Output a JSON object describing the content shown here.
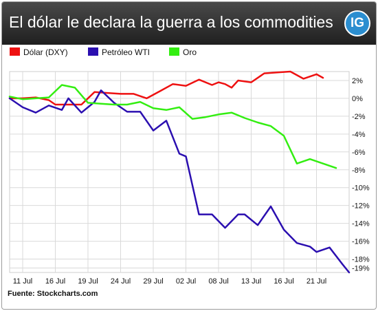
{
  "header": {
    "title": "El dólar le declara la guerra a los commodities",
    "logo_text": "IG",
    "background": "#2d2d2d",
    "logo_color": "#2b8ed0"
  },
  "source": "Fuente: Stockcharts.com",
  "chart_data": {
    "type": "line",
    "title": "El dólar le declara la guerra a los commodities",
    "ylim": [
      -19.5,
      3
    ],
    "y_ticks": [
      {
        "value": 2,
        "label": "2%"
      },
      {
        "value": 0,
        "label": "0%"
      },
      {
        "value": -2,
        "label": "-2%"
      },
      {
        "value": -4,
        "label": "-4%"
      },
      {
        "value": -6,
        "label": "-6%"
      },
      {
        "value": -8,
        "label": "-8%"
      },
      {
        "value": -10,
        "label": "-10%"
      },
      {
        "value": -12,
        "label": "-12%"
      },
      {
        "value": -14,
        "label": "-14%"
      },
      {
        "value": -16,
        "label": "-16%"
      },
      {
        "value": -18,
        "label": "-18%"
      },
      {
        "value": -19,
        "label": "-19%"
      }
    ],
    "x_ticks": [
      {
        "index": 2,
        "label": "11 Jul"
      },
      {
        "index": 7,
        "label": "16 Jul"
      },
      {
        "index": 12,
        "label": "19 Jul"
      },
      {
        "index": 17,
        "label": "24 Jul"
      },
      {
        "index": 22,
        "label": "29 Jul"
      },
      {
        "index": 27,
        "label": "02 Jul"
      },
      {
        "index": 32,
        "label": "08 Jul"
      },
      {
        "index": 37,
        "label": "13 Jul"
      },
      {
        "index": 42,
        "label": "16 Jul"
      },
      {
        "index": 47,
        "label": "21 Jul"
      }
    ],
    "grid": true,
    "legend_position": "top-left",
    "series": [
      {
        "name": "Dólar (DXY)",
        "color": "#ee1111",
        "points": [
          [
            0,
            0
          ],
          [
            2,
            0
          ],
          [
            4,
            0.1
          ],
          [
            6,
            -0.2
          ],
          [
            7,
            -0.7
          ],
          [
            9,
            -0.7
          ],
          [
            11,
            -0.7
          ],
          [
            13,
            0.7
          ],
          [
            15,
            0.6
          ],
          [
            17,
            0.5
          ],
          [
            19,
            0.5
          ],
          [
            21,
            0
          ],
          [
            23,
            0.8
          ],
          [
            25,
            1.6
          ],
          [
            27,
            1.4
          ],
          [
            29,
            2.1
          ],
          [
            31,
            1.5
          ],
          [
            32,
            1.8
          ],
          [
            33,
            1.6
          ],
          [
            34,
            1.2
          ],
          [
            35,
            2
          ],
          [
            37,
            1.8
          ],
          [
            39,
            2.8
          ],
          [
            41,
            2.9
          ],
          [
            43,
            3
          ],
          [
            45,
            2.2
          ],
          [
            47,
            2.7
          ],
          [
            48,
            2.3
          ]
        ]
      },
      {
        "name": "Petróleo WTI",
        "color": "#2b0fb0",
        "points": [
          [
            0,
            0
          ],
          [
            2,
            -1
          ],
          [
            4,
            -1.6
          ],
          [
            6,
            -0.8
          ],
          [
            8,
            -1.3
          ],
          [
            9,
            0
          ],
          [
            11,
            -1.6
          ],
          [
            13,
            -0.4
          ],
          [
            14,
            0.9
          ],
          [
            16,
            -0.5
          ],
          [
            18,
            -1.5
          ],
          [
            20,
            -1.5
          ],
          [
            22,
            -3.6
          ],
          [
            24,
            -2.5
          ],
          [
            26,
            -6.2
          ],
          [
            27,
            -6.5
          ],
          [
            29,
            -13
          ],
          [
            31,
            -13
          ],
          [
            33,
            -14.5
          ],
          [
            35,
            -13
          ],
          [
            36,
            -13
          ],
          [
            38,
            -14.2
          ],
          [
            40,
            -12.1
          ],
          [
            42,
            -14.7
          ],
          [
            44,
            -16.2
          ],
          [
            46,
            -16.6
          ],
          [
            47,
            -17.2
          ],
          [
            49,
            -16.7
          ],
          [
            51,
            -18.6
          ],
          [
            52,
            -19.5
          ]
        ]
      },
      {
        "name": "Oro",
        "color": "#33ee11",
        "points": [
          [
            0,
            0.2
          ],
          [
            2,
            -0.1
          ],
          [
            4,
            0
          ],
          [
            6,
            0.1
          ],
          [
            8,
            1.5
          ],
          [
            10,
            1.2
          ],
          [
            12,
            -0.5
          ],
          [
            14,
            -0.6
          ],
          [
            16,
            -0.7
          ],
          [
            18,
            -0.7
          ],
          [
            20,
            -0.4
          ],
          [
            22,
            -1.1
          ],
          [
            24,
            -1.3
          ],
          [
            26,
            -1
          ],
          [
            28,
            -2.3
          ],
          [
            30,
            -2.1
          ],
          [
            32,
            -1.8
          ],
          [
            34,
            -1.6
          ],
          [
            36,
            -2.2
          ],
          [
            38,
            -2.7
          ],
          [
            40,
            -3.1
          ],
          [
            42,
            -4.2
          ],
          [
            44,
            -7.3
          ],
          [
            46,
            -6.8
          ],
          [
            48,
            -7.3
          ],
          [
            50,
            -7.8
          ]
        ]
      }
    ]
  }
}
